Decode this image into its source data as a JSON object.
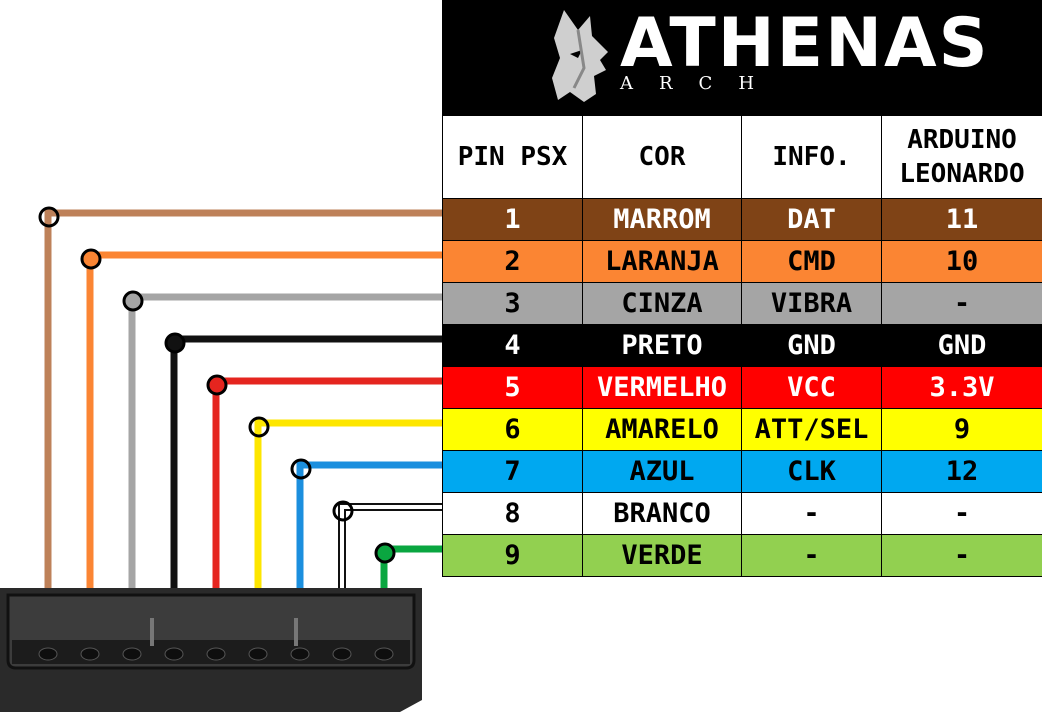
{
  "brand": {
    "name": "ATHENAS",
    "sub": "ARCH"
  },
  "columns": [
    "PIN PSX",
    "COR",
    "INFO.",
    "ARDUINO LEONARDO"
  ],
  "rows": [
    {
      "pin": "1",
      "cor": "MARROM",
      "info": "DAT",
      "arduino": "11",
      "bg": "#7f4316",
      "fg": "#ffffff",
      "wire": "#be8159"
    },
    {
      "pin": "2",
      "cor": "LARANJA",
      "info": "CMD",
      "arduino": "10",
      "bg": "#fb8533",
      "fg": "#000000",
      "wire": "#fb8533"
    },
    {
      "pin": "3",
      "cor": "CINZA",
      "info": "VIBRA",
      "arduino": "-",
      "bg": "#a5a5a5",
      "fg": "#000000",
      "wire": "#a5a5a5"
    },
    {
      "pin": "4",
      "cor": "PRETO",
      "info": "GND",
      "arduino": "GND",
      "bg": "#000000",
      "fg": "#ffffff",
      "wire": "#111111"
    },
    {
      "pin": "5",
      "cor": "VERMELHO",
      "info": "VCC",
      "arduino": "3.3V",
      "bg": "#ff0000",
      "fg": "#ffffff",
      "wire": "#e5251f"
    },
    {
      "pin": "6",
      "cor": "AMARELO",
      "info": "ATT/SEL",
      "arduino": "9",
      "bg": "#ffff00",
      "fg": "#000000",
      "wire": "#fde600"
    },
    {
      "pin": "7",
      "cor": "AZUL",
      "info": "CLK",
      "arduino": "12",
      "bg": "#00a8f0",
      "fg": "#000000",
      "wire": "#1b8fde"
    },
    {
      "pin": "8",
      "cor": "BRANCO",
      "info": "-",
      "arduino": "-",
      "bg": "#ffffff",
      "fg": "#000000",
      "wire": "#ffffff"
    },
    {
      "pin": "9",
      "cor": "VERDE",
      "info": "-",
      "arduino": "-",
      "bg": "#92d050",
      "fg": "#000000",
      "wire": "#0aa640"
    }
  ]
}
